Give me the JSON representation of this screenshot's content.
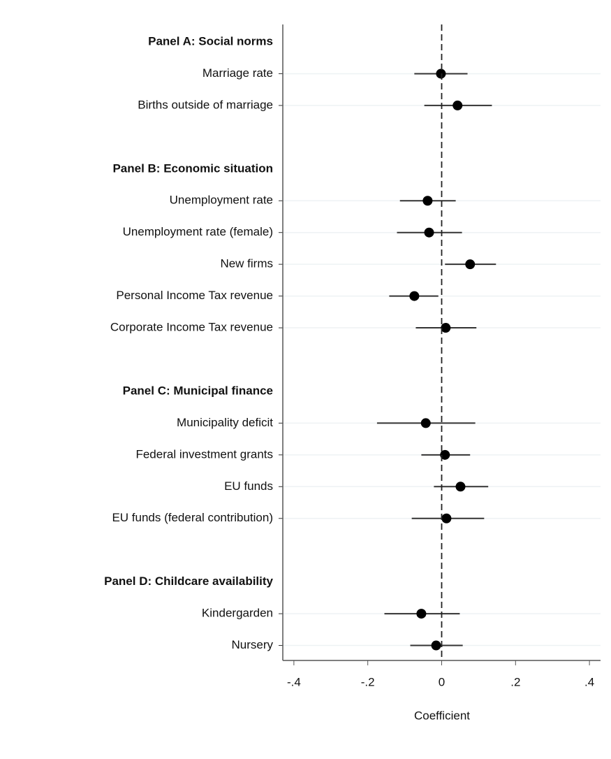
{
  "chart_data": {
    "type": "coefplot",
    "x_label": "Coefficient",
    "xlim": [
      -0.43,
      0.43
    ],
    "xticks": [
      {
        "value": -0.4,
        "label": "-.4"
      },
      {
        "value": -0.2,
        "label": "-.2"
      },
      0,
      {
        "value": 0.2,
        "label": ".2"
      },
      {
        "value": 0.4,
        "label": ".4"
      }
    ],
    "reference_line": 0,
    "color": "#000000",
    "ci_color": "#333333",
    "grid": true,
    "panels": [
      {
        "title": "Panel A: Social norms",
        "categories": [
          "Marriage rate",
          "Births outside of marriage"
        ],
        "values": [
          -0.002,
          0.043
        ],
        "ci_low": [
          -0.074,
          -0.047
        ],
        "ci_high": [
          0.07,
          0.136
        ]
      },
      {
        "title": "Panel B: Economic situation",
        "categories": [
          "Unemployment rate",
          "Unemployment rate (female)",
          "New firms",
          "Personal Income Tax revenue",
          "Corporate Income Tax revenue"
        ],
        "values": [
          -0.038,
          -0.034,
          0.077,
          -0.074,
          0.011
        ],
        "ci_low": [
          -0.113,
          -0.121,
          0.009,
          -0.142,
          -0.07
        ],
        "ci_high": [
          0.038,
          0.055,
          0.147,
          -0.009,
          0.094
        ]
      },
      {
        "title": "Panel C: Municipal finance",
        "categories": [
          "Municipality deficit",
          "Federal investment grants",
          "EU funds",
          "EU funds (federal contribution)"
        ],
        "values": [
          -0.043,
          0.009,
          0.051,
          0.013
        ],
        "ci_low": [
          -0.175,
          -0.055,
          -0.021,
          -0.081
        ],
        "ci_high": [
          0.091,
          0.077,
          0.126,
          0.115
        ]
      },
      {
        "title": "Panel D: Childcare availability",
        "categories": [
          "Kindergarden",
          "Nursery"
        ],
        "values": [
          -0.055,
          -0.015
        ],
        "ci_low": [
          -0.155,
          -0.085
        ],
        "ci_high": [
          0.049,
          0.057
        ]
      }
    ]
  }
}
